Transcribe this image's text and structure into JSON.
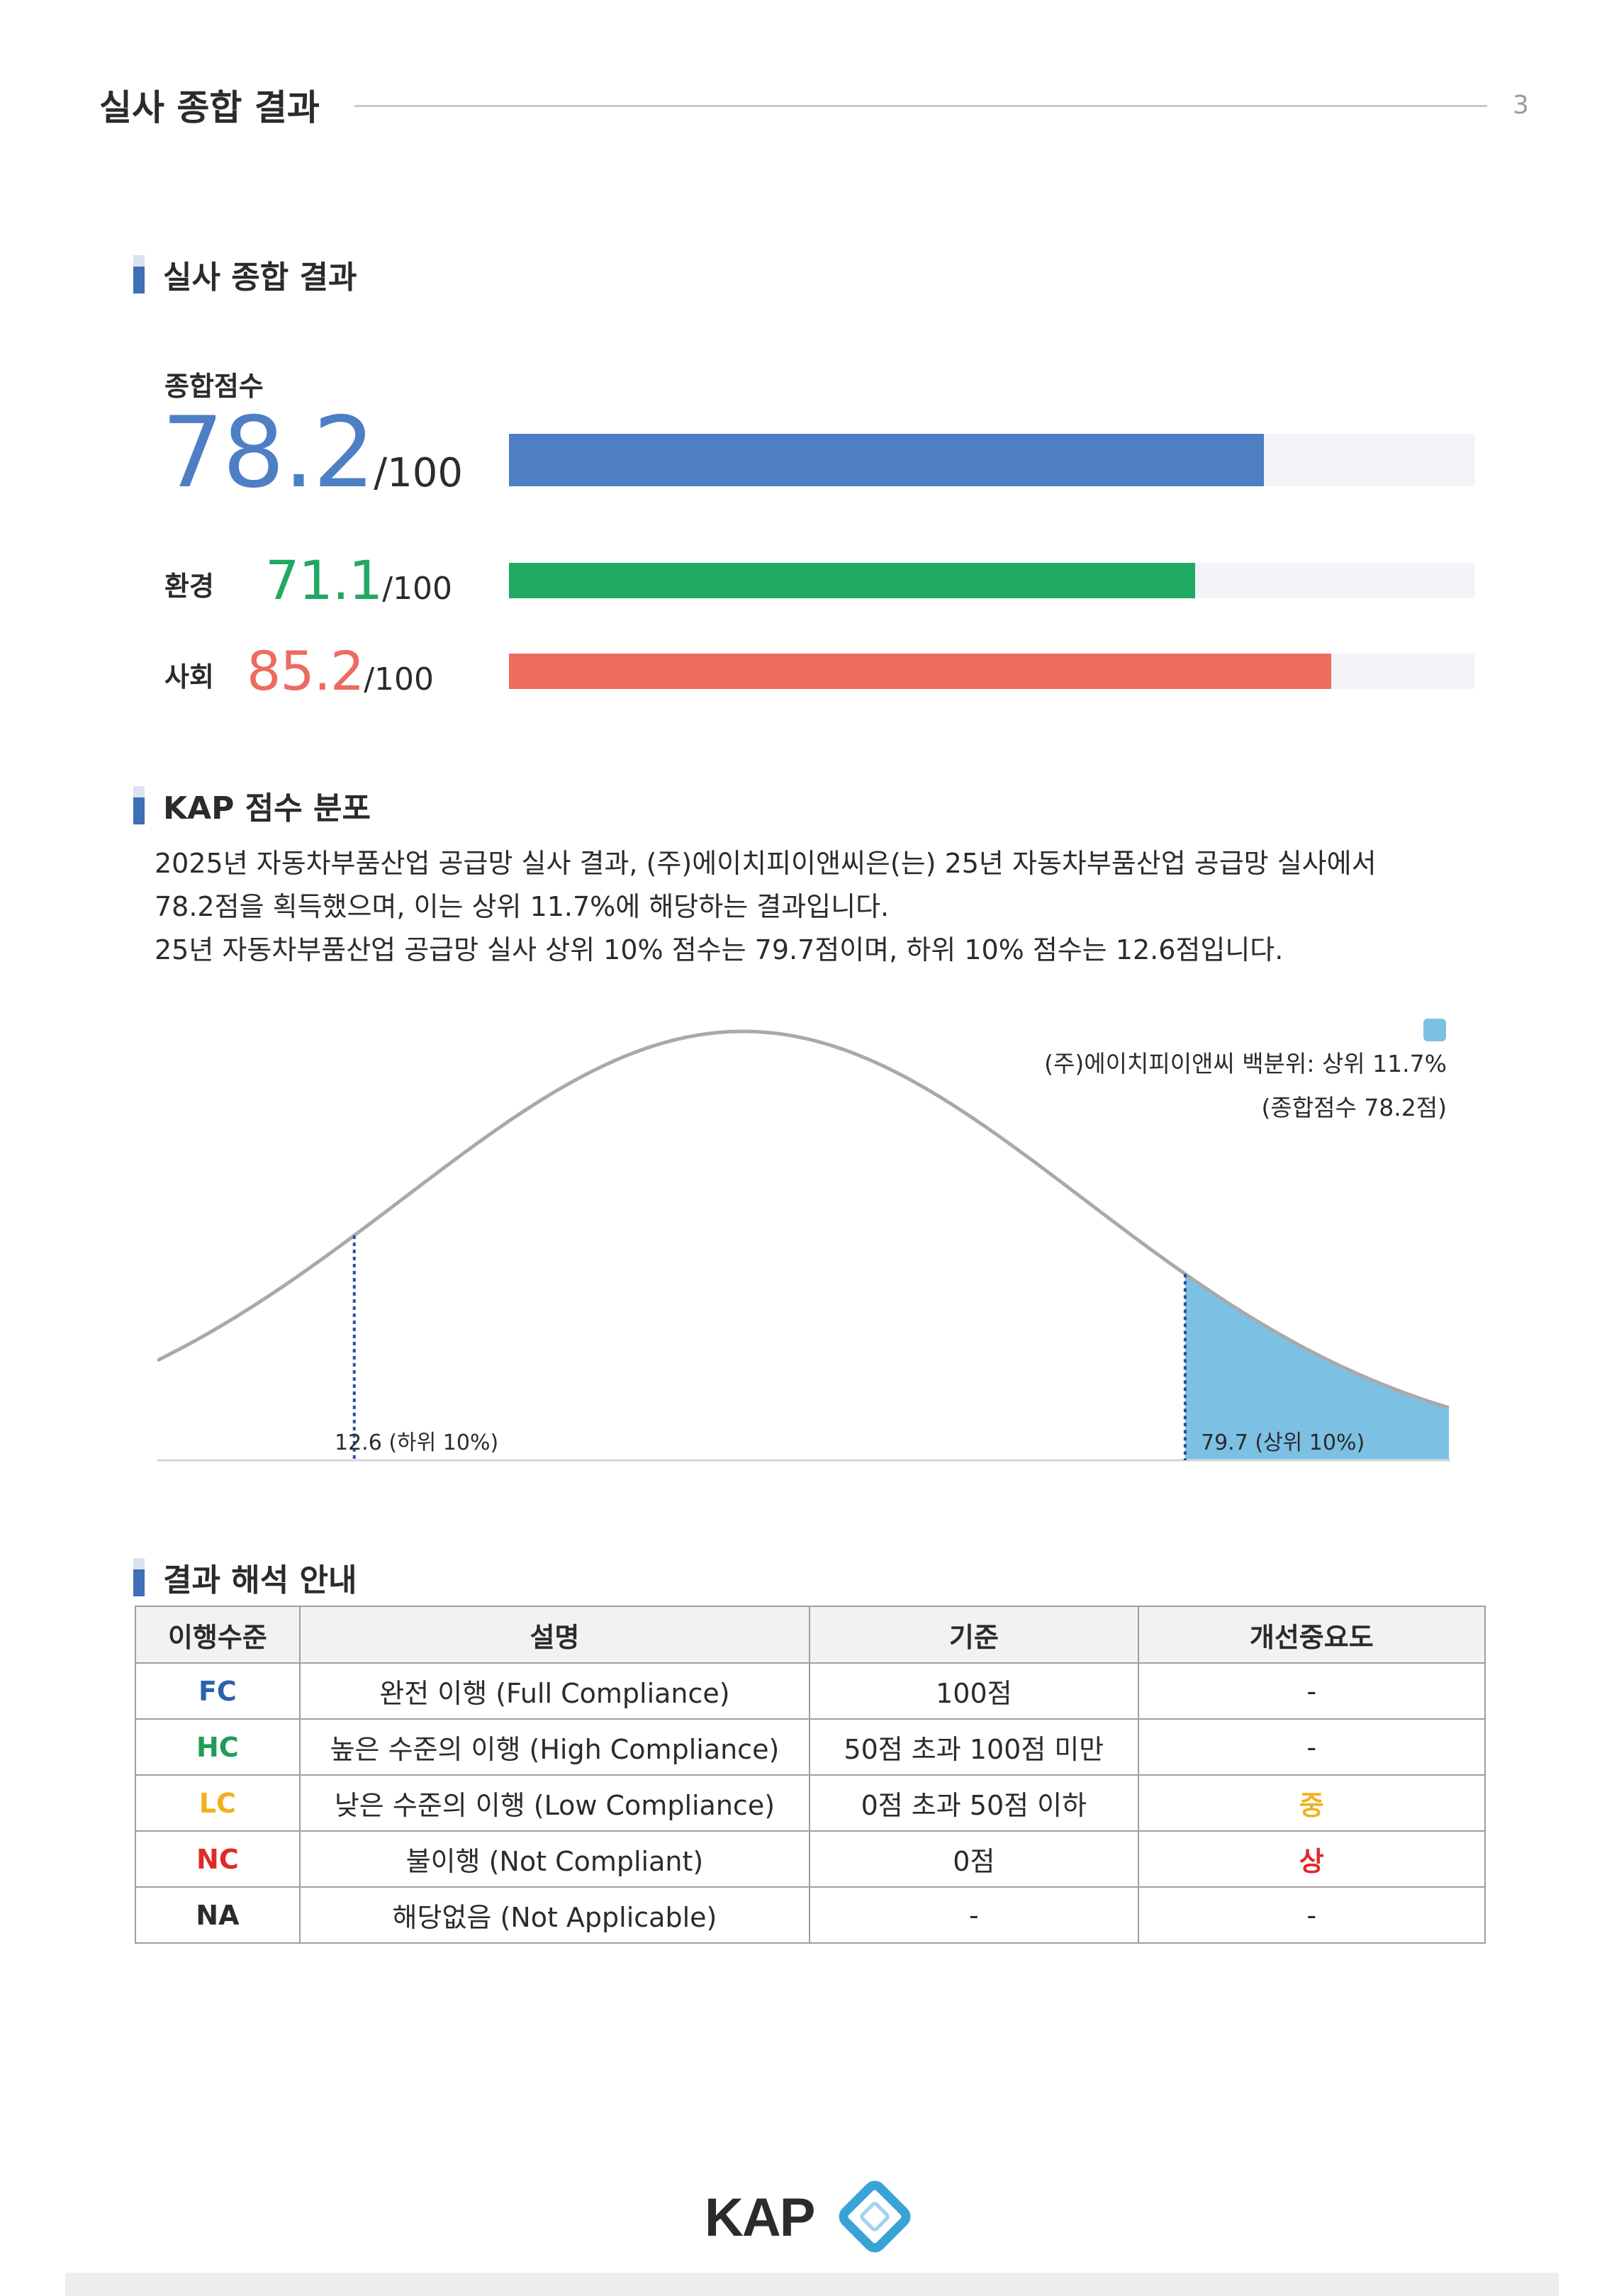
{
  "header": {
    "title": "실사 종합 결과",
    "page_number": "3"
  },
  "sections": {
    "summary": "실사 종합 결과",
    "distribution": "KAP 점수 분포",
    "guide": "결과 해석 안내"
  },
  "scores": {
    "total": {
      "label": "종합점수",
      "value": "78.2",
      "denom": "/100",
      "fraction": 0.782,
      "color": "#4e7fc4"
    },
    "environment": {
      "label": "환경",
      "value": "71.1",
      "denom": "/100",
      "fraction": 0.711,
      "color": "#20a962"
    },
    "social": {
      "label": "사회",
      "value": "85.2",
      "denom": "/100",
      "fraction": 0.852,
      "color": "#ee6b5f"
    }
  },
  "paragraph": [
    "2025년 자동차부품산업 공급망 실사 결과, (주)에이치피이앤씨은(는) 25년 자동차부품산업 공급망 실사에서",
    "78.2점을 획득했으며, 이는 상위 11.7%에 해당하는 결과입니다.",
    "25년 자동차부품산업 공급망 실사 상위 10% 점수는 79.7점이며, 하위 10% 점수는 12.6점입니다."
  ],
  "chart_data": {
    "type": "area",
    "legend": {
      "line1": "(주)에이치피이앤씨 백분위: 상위 11.7%",
      "line2": "(종합점수 78.2점)",
      "placement": "top-right",
      "color": "#7cc0e4"
    },
    "markers": [
      {
        "value": 12.6,
        "label": "12.6 (하위 10%)"
      },
      {
        "value": 79.7,
        "label": "79.7 (상위 10%)"
      }
    ],
    "shaded_from": 79.7,
    "curve_color": "#a9a9a9",
    "fill_color": "#7cc0e4",
    "grid": false
  },
  "table": {
    "headers": [
      "이행수준",
      "설명",
      "기준",
      "개선중요도"
    ],
    "rows": [
      {
        "level": "FC",
        "level_color": "#2b62b0",
        "desc": "완전 이행 (Full Compliance)",
        "criteria": "100점",
        "priority": "-",
        "priority_color": "#2b2b2b"
      },
      {
        "level": "HC",
        "level_color": "#1e9e57",
        "desc": "높은 수준의 이행 (High Compliance)",
        "criteria": "50점 초과 100점 미만",
        "priority": "-",
        "priority_color": "#2b2b2b"
      },
      {
        "level": "LC",
        "level_color": "#f2b01e",
        "desc": "낮은 수준의 이행 (Low Compliance)",
        "criteria": "0점 초과 50점 이하",
        "priority": "중",
        "priority_color": "#f2b01e"
      },
      {
        "level": "NC",
        "level_color": "#e02a2a",
        "desc": "불이행 (Not Compliant)",
        "criteria": "0점",
        "priority": "상",
        "priority_color": "#e02a2a"
      },
      {
        "level": "NA",
        "level_color": "#2b2b2b",
        "desc": "해당없음 (Not Applicable)",
        "criteria": "-",
        "priority": "-",
        "priority_color": "#2b2b2b"
      }
    ]
  },
  "footer": {
    "logo_text": "KAP",
    "logo_color": "#3aa3d6"
  }
}
